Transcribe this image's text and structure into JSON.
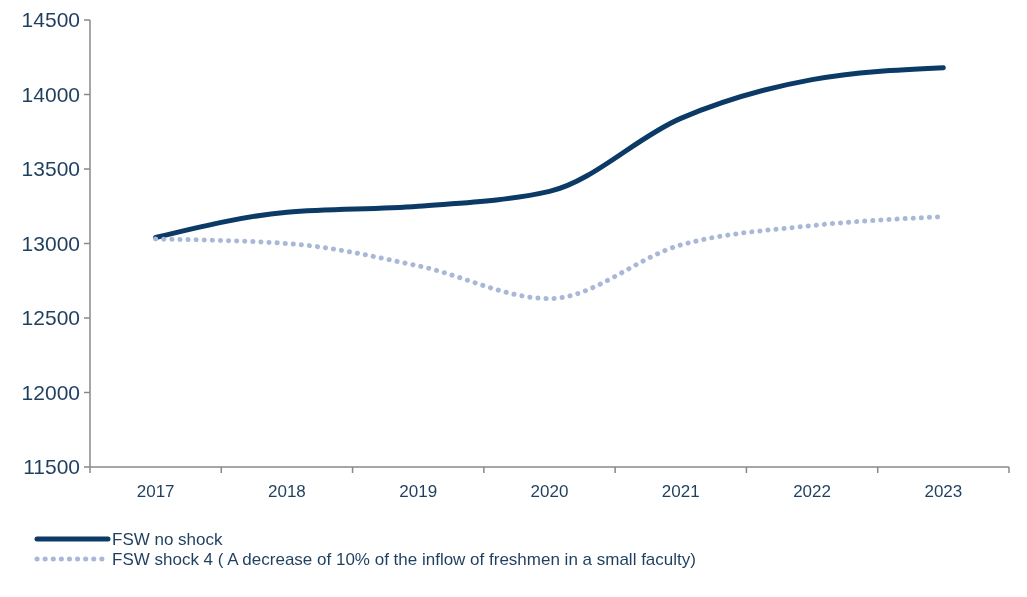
{
  "chart_data": {
    "type": "line",
    "categories": [
      "2017",
      "2018",
      "2019",
      "2020",
      "2021",
      "2022",
      "2023"
    ],
    "series": [
      {
        "name": "FSW no shock",
        "color": "#0b3a66",
        "line_style": "solid",
        "values": [
          13040,
          13210,
          13250,
          13350,
          13840,
          14100,
          14180
        ]
      },
      {
        "name": "FSW  shock 4 ( A decrease of 10% of the inflow of freshmen in a small faculty)",
        "color": "#a9b8d8",
        "line_style": "dotted",
        "values": [
          13030,
          13000,
          12850,
          12630,
          12990,
          13120,
          13180
        ]
      }
    ],
    "ylim": [
      11500,
      14500
    ],
    "yticks": [
      11500,
      12000,
      12500,
      13000,
      13500,
      14000,
      14500
    ],
    "grid": false,
    "legend": "bottom",
    "marker": "none"
  }
}
